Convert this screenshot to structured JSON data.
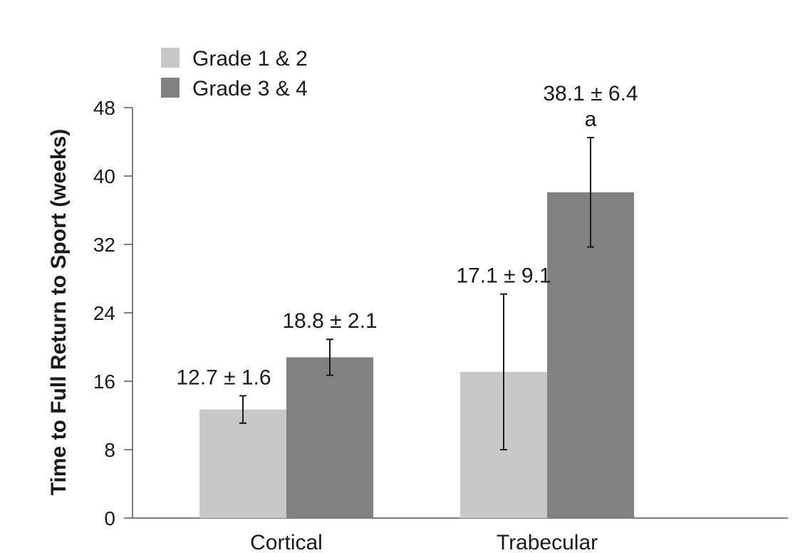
{
  "chart_data": {
    "type": "bar",
    "title": "",
    "xlabel": "",
    "ylabel": "Time to Full Return to Sport (weeks)",
    "categories": [
      "Cortical",
      "Trabecular"
    ],
    "ylim": [
      0,
      48
    ],
    "yticks": [
      0,
      8,
      16,
      24,
      32,
      40,
      48
    ],
    "grid": false,
    "legend": "top-left",
    "series": [
      {
        "name": "Grade 1 & 2",
        "color": "#c8c8c8",
        "values": [
          12.7,
          17.1
        ],
        "errors": [
          1.6,
          9.1
        ],
        "labels": [
          "12.7 ± 1.6",
          "17.1 ± 9.1"
        ],
        "annotations": [
          "",
          ""
        ]
      },
      {
        "name": "Grade 3 & 4",
        "color": "#818181",
        "values": [
          18.8,
          38.1
        ],
        "errors": [
          2.1,
          6.4
        ],
        "labels": [
          "18.8 ± 2.1",
          "38.1 ± 6.4"
        ],
        "annotations": [
          "",
          "a"
        ]
      }
    ]
  }
}
